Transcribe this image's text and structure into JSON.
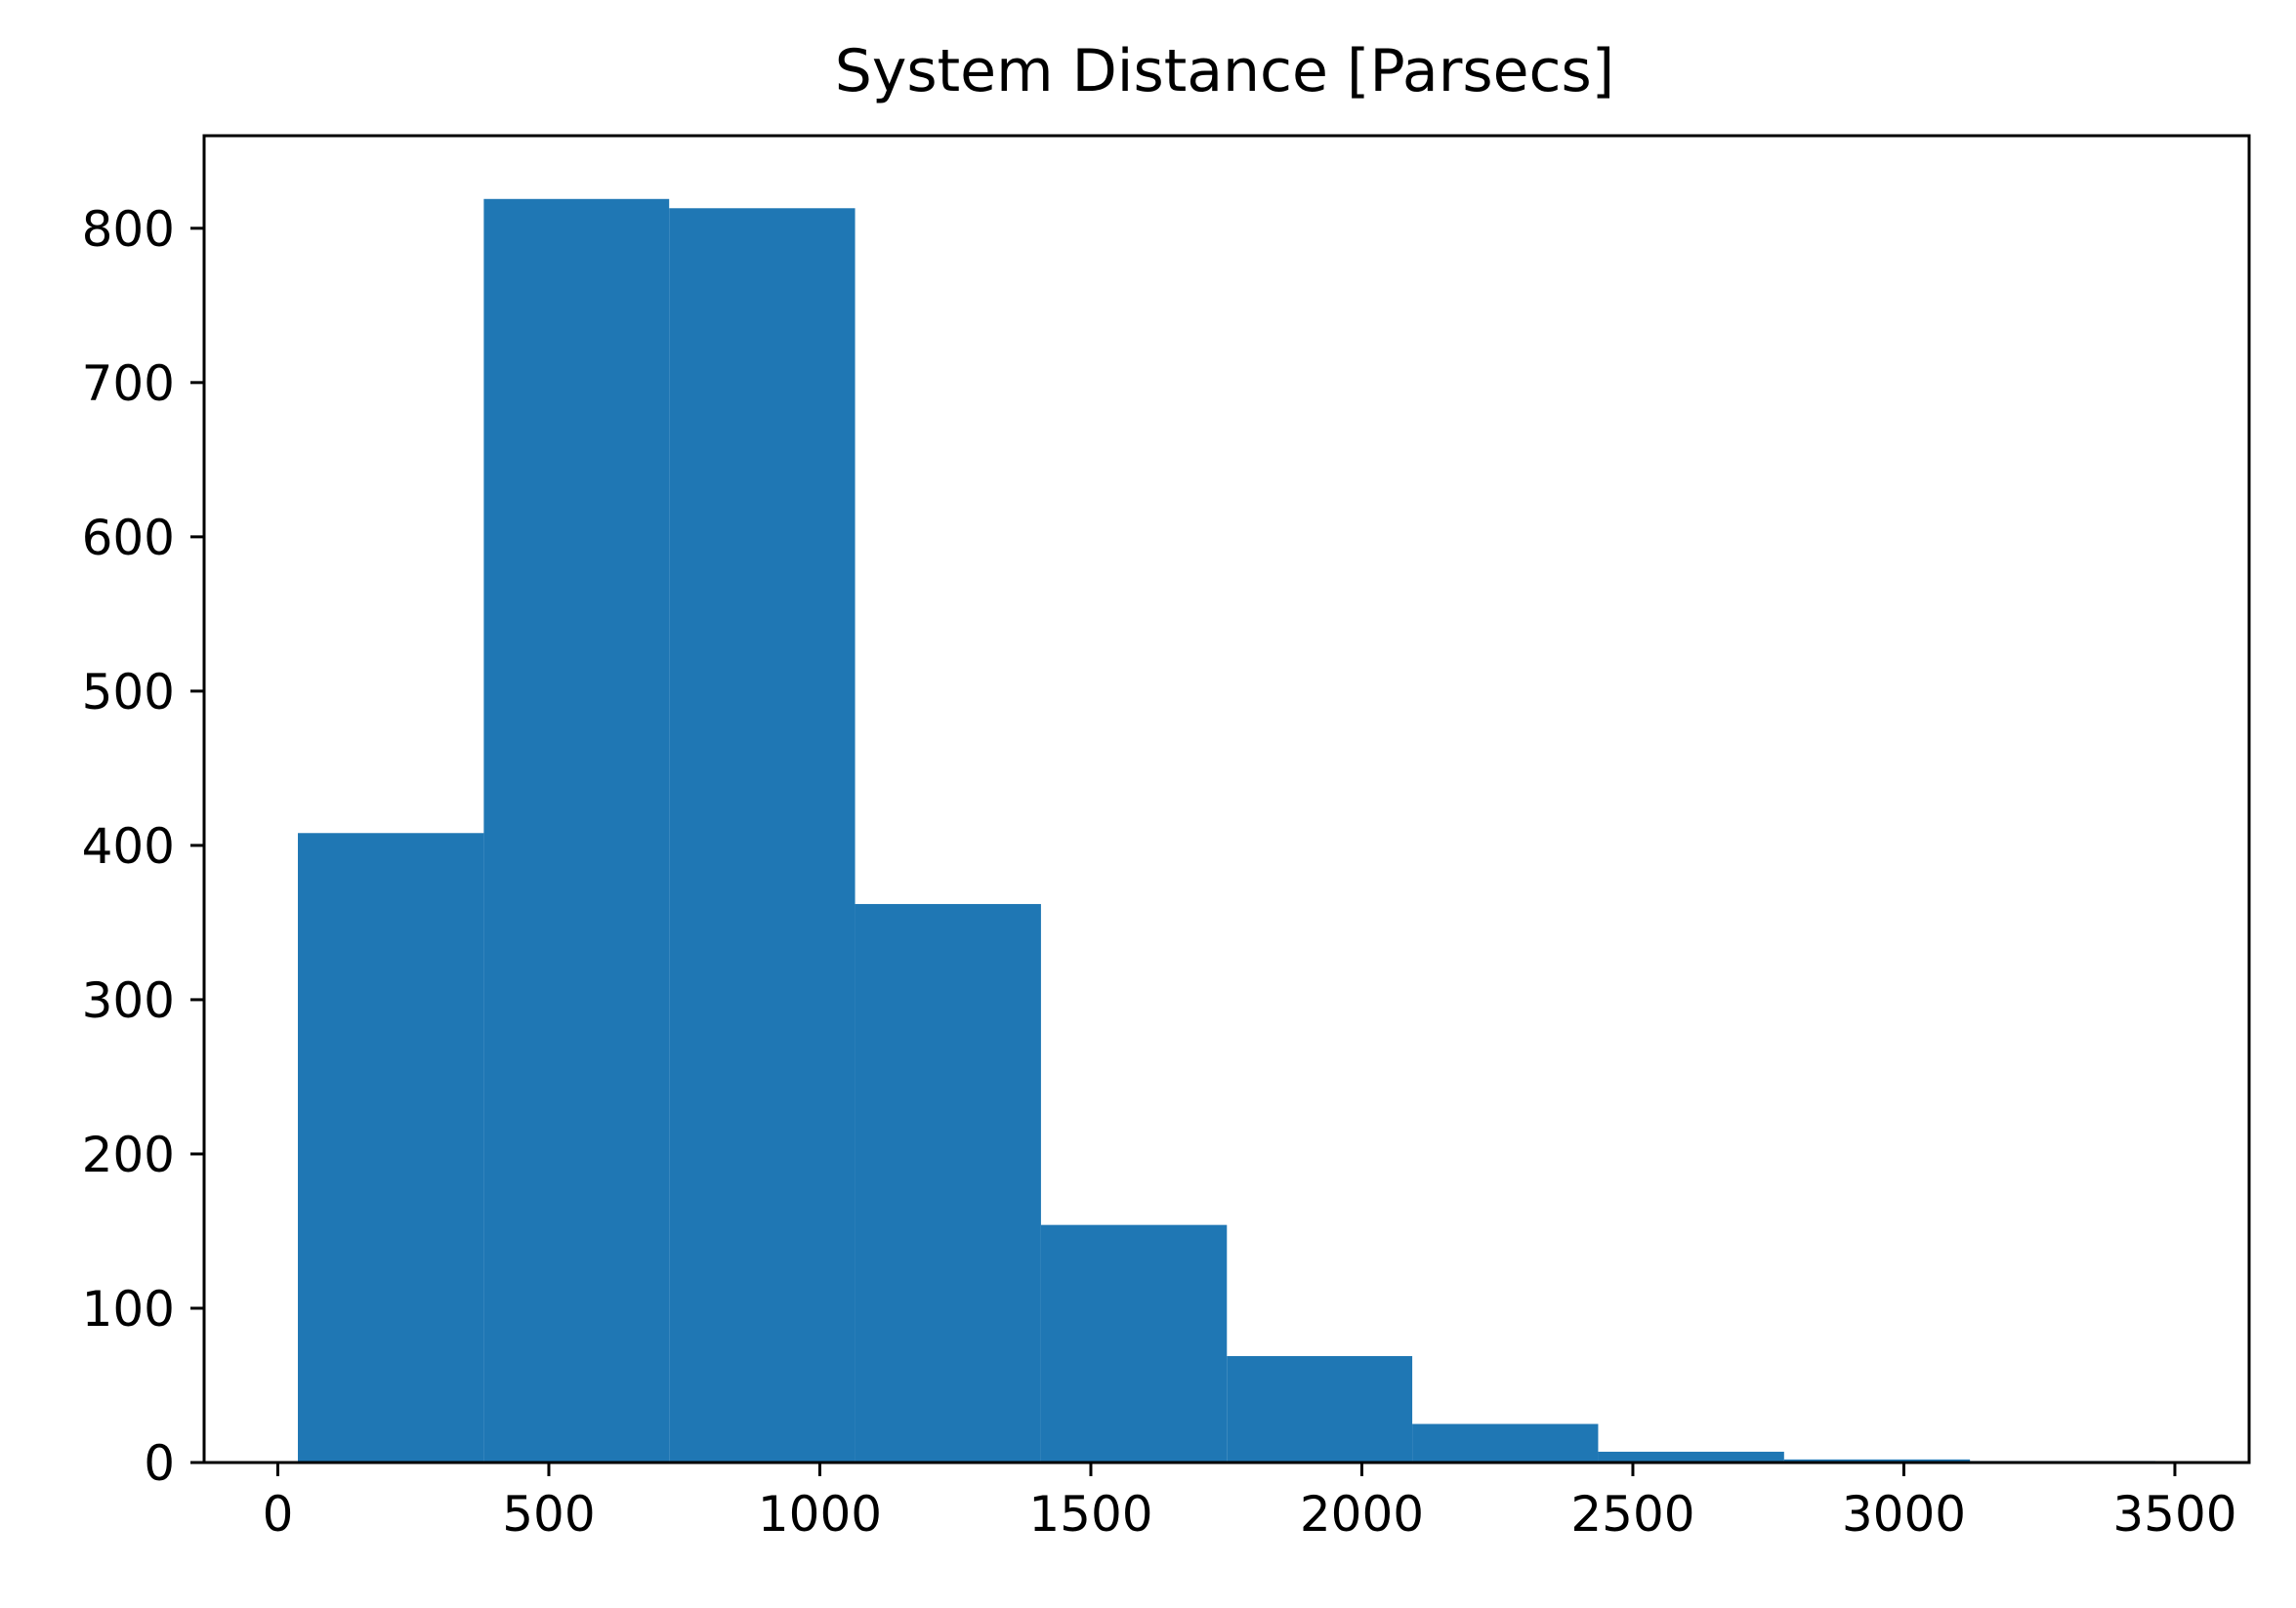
{
  "chart_data": {
    "type": "bar",
    "title": "System Distance [Parsecs]",
    "xlabel": "",
    "ylabel": "",
    "bar_color": "#1f77b4",
    "bins": [
      {
        "x0": 37,
        "x1": 380,
        "count": 408
      },
      {
        "x0": 380,
        "x1": 722,
        "count": 819
      },
      {
        "x0": 722,
        "x1": 1065,
        "count": 813
      },
      {
        "x0": 1065,
        "x1": 1408,
        "count": 362
      },
      {
        "x0": 1408,
        "x1": 1751,
        "count": 154
      },
      {
        "x0": 1751,
        "x1": 2093,
        "count": 69
      },
      {
        "x0": 2093,
        "x1": 2436,
        "count": 25
      },
      {
        "x0": 2436,
        "x1": 2779,
        "count": 7
      },
      {
        "x0": 2779,
        "x1": 3122,
        "count": 2
      },
      {
        "x0": 3122,
        "x1": 3464,
        "count": 1
      }
    ],
    "xlim": [
      -136,
      3637
    ],
    "ylim": [
      0,
      860
    ],
    "x_ticks": [
      "0",
      "500",
      "1000",
      "1500",
      "2000",
      "2500",
      "3000",
      "3500"
    ],
    "y_ticks": [
      "0",
      "100",
      "200",
      "300",
      "400",
      "500",
      "600",
      "700",
      "800"
    ],
    "grid": false,
    "legend": "none"
  }
}
